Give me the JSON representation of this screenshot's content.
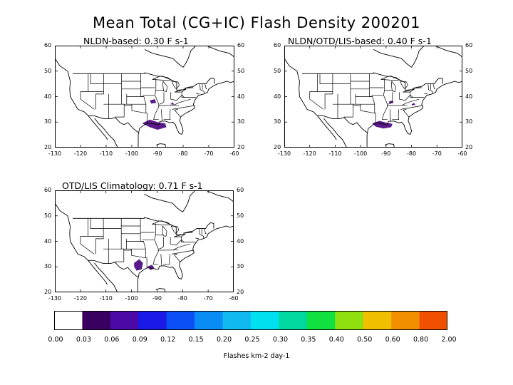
{
  "title": "Mean Total (CG+IC) Flash Density 200201",
  "panels": [
    {
      "title": "NLDN-based:  0.30 F s-1"
    },
    {
      "title": "NLDN/OTD/LIS-based:  0.40 F s-1"
    },
    {
      "title": "OTD/LIS Climatology:  0.71 F s-1"
    }
  ],
  "axes": {
    "lat_ticks": [
      "60",
      "50",
      "40",
      "30",
      "20"
    ],
    "lon_ticks": [
      "-130",
      "-120",
      "-110",
      "-100",
      "-90",
      "-80",
      "-70",
      "-60"
    ]
  },
  "colorbar": {
    "colors": [
      "#ffffff",
      "#3a0060",
      "#4b0aa6",
      "#1a1ae8",
      "#0a50f5",
      "#0a8cf5",
      "#10baf0",
      "#00e0f0",
      "#00d8a0",
      "#10e040",
      "#90e010",
      "#f0c000",
      "#f09000",
      "#f05000"
    ],
    "labels": [
      "0.00",
      "0.03",
      "0.06",
      "0.09",
      "0.12",
      "0.15",
      "0.20",
      "0.25",
      "0.30",
      "0.35",
      "0.40",
      "0.50",
      "0.60",
      "0.80",
      "2.00"
    ],
    "units": "Flashes km-2 day-1"
  },
  "flash_color": "#5a1a8a"
}
